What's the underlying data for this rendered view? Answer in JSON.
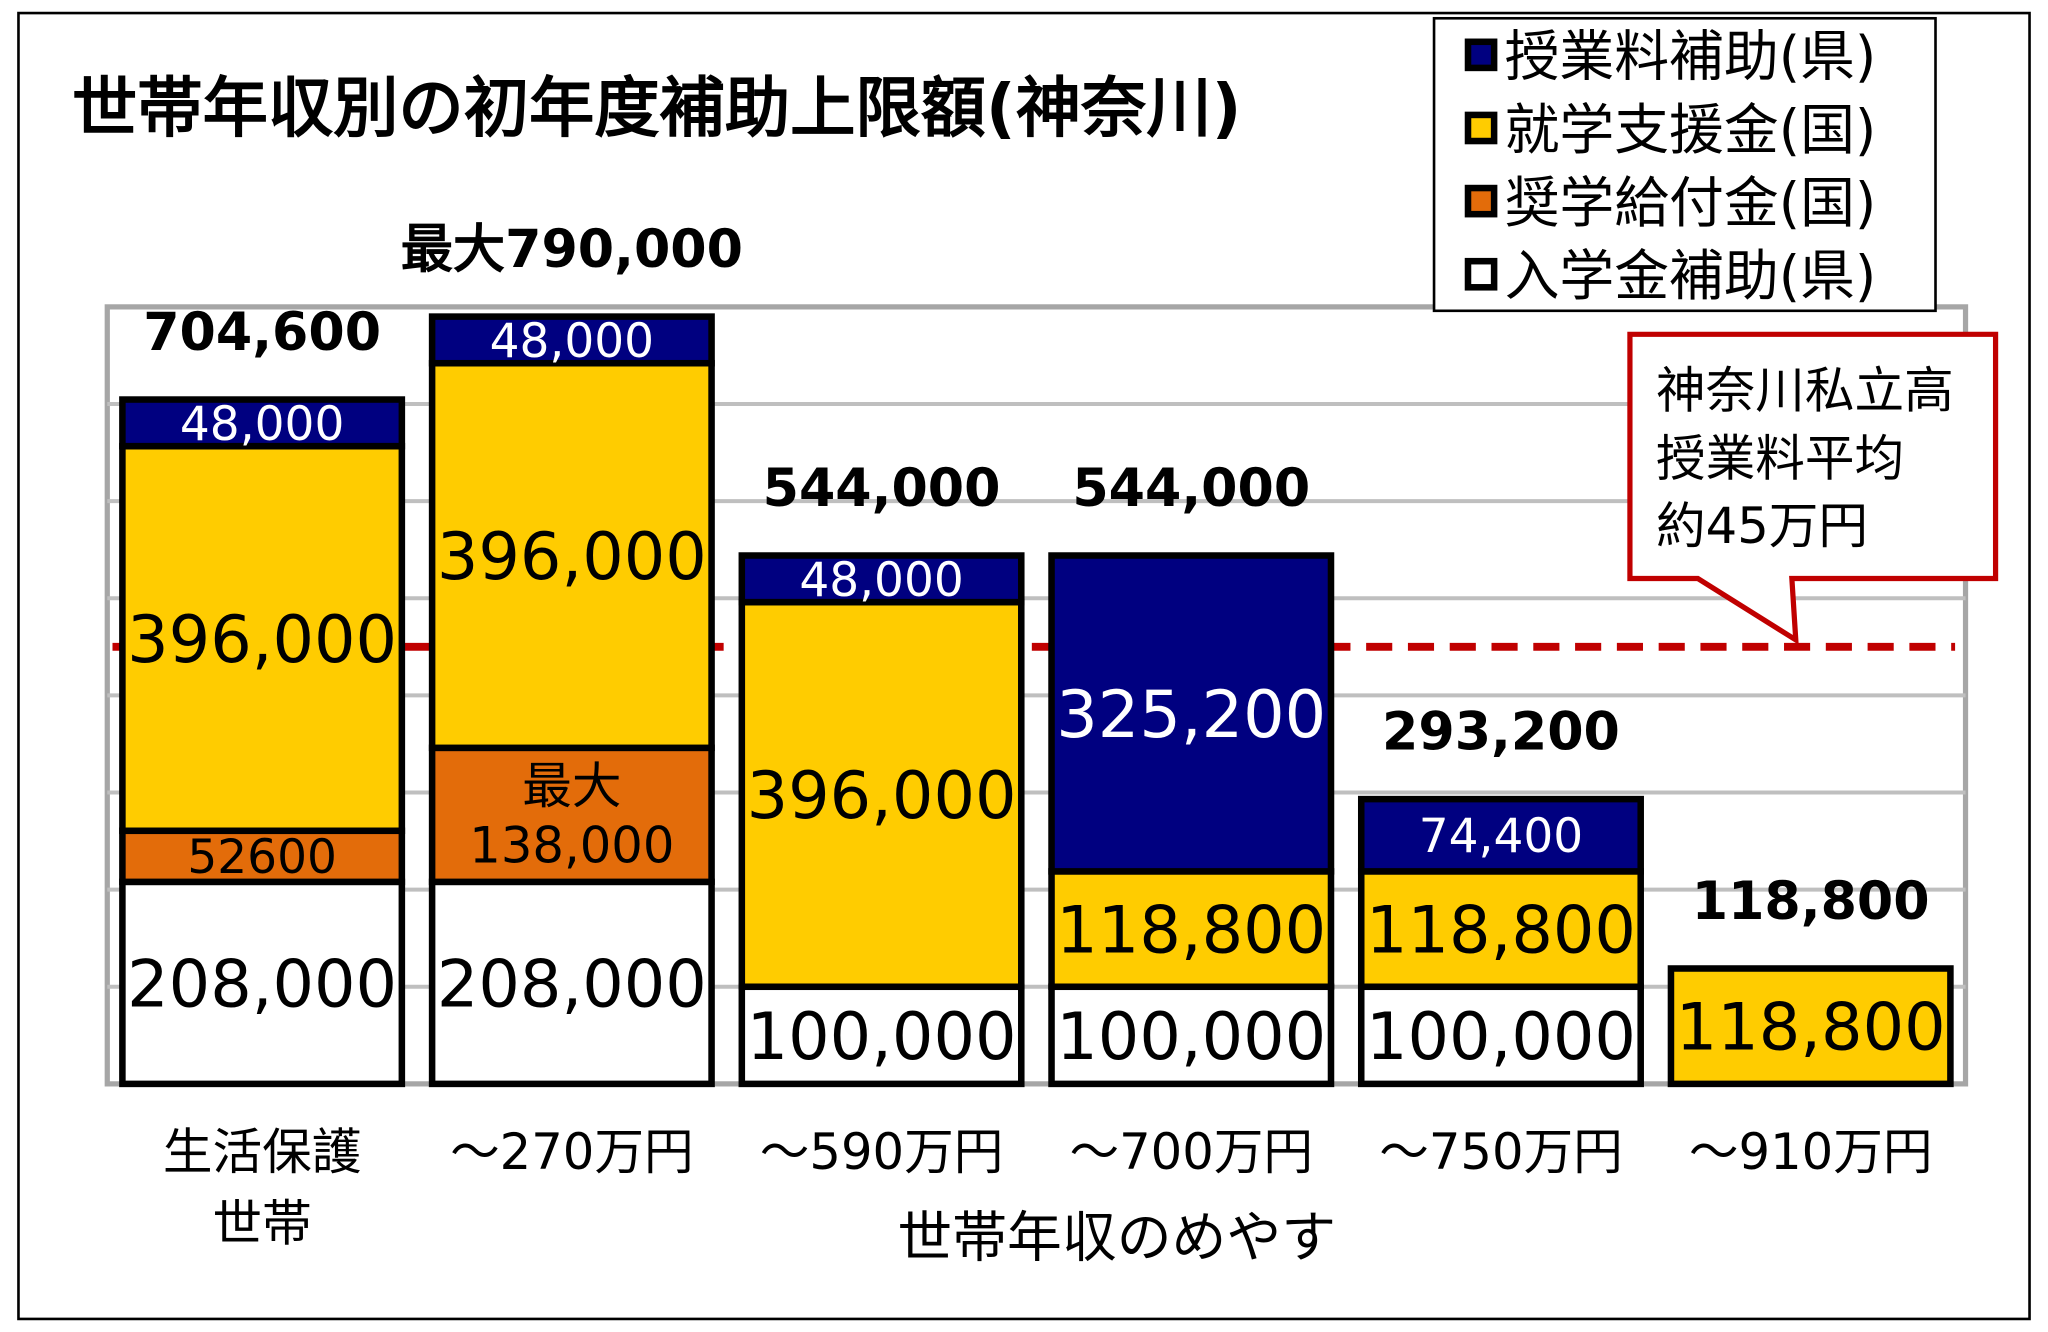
{
  "chart_data": {
    "type": "bar",
    "stacked": true,
    "title": "世帯年収別の初年度補助上限額(神奈川)",
    "xlabel": "世帯年収のめやす",
    "ylabel": "",
    "ylim": [
      0,
      800000
    ],
    "grid": true,
    "grid_step": 100000,
    "legend_position": "top-right",
    "categories": [
      [
        "生活保護",
        "世帯"
      ],
      [
        "～270万円"
      ],
      [
        "～590万円"
      ],
      [
        "～700万円"
      ],
      [
        "～750万円"
      ],
      [
        "～910万円"
      ]
    ],
    "series": [
      {
        "name": "入学金補助(県)",
        "color": "#FFFFFF",
        "text_color": "#000000",
        "values": [
          208000,
          208000,
          100000,
          100000,
          100000,
          0
        ],
        "labels": [
          [
            "208,000"
          ],
          [
            "208,000"
          ],
          [
            "100,000"
          ],
          [
            "100,000"
          ],
          [
            "100,000"
          ],
          []
        ]
      },
      {
        "name": "奨学給付金(国)",
        "color": "#E36C0A",
        "text_color": "#000000",
        "values": [
          52600,
          138000,
          0,
          0,
          0,
          0
        ],
        "labels": [
          [
            "52600"
          ],
          [
            "最大",
            "138,000"
          ],
          [],
          [],
          [],
          []
        ]
      },
      {
        "name": "就学支援金(国)",
        "color": "#FFCC00",
        "text_color": "#000000",
        "values": [
          396000,
          396000,
          396000,
          118800,
          118800,
          118800
        ],
        "labels": [
          [
            "396,000"
          ],
          [
            "396,000"
          ],
          [
            "396,000"
          ],
          [
            "118,800"
          ],
          [
            "118,800"
          ],
          [
            "118,800"
          ]
        ]
      },
      {
        "name": "授業料補助(県)",
        "color": "#000080",
        "text_color": "#FFFFFF",
        "values": [
          48000,
          48000,
          48000,
          325200,
          74400,
          0
        ],
        "labels": [
          [
            "48,000"
          ],
          [
            "48,000"
          ],
          [
            "48,000"
          ],
          [
            "325,200"
          ],
          [
            "74,400"
          ],
          []
        ]
      }
    ],
    "legend_order": [
      3,
      2,
      1,
      0
    ],
    "totals": [
      "704,600",
      "最大790,000",
      "544,000",
      "544,000",
      "293,200",
      "118,800"
    ],
    "reference_line": {
      "value": 450000,
      "color": "#C00000"
    },
    "annotation": {
      "lines": [
        "神奈川私立高",
        "授業料平均",
        "約45万円"
      ],
      "color": "#C00000"
    }
  }
}
